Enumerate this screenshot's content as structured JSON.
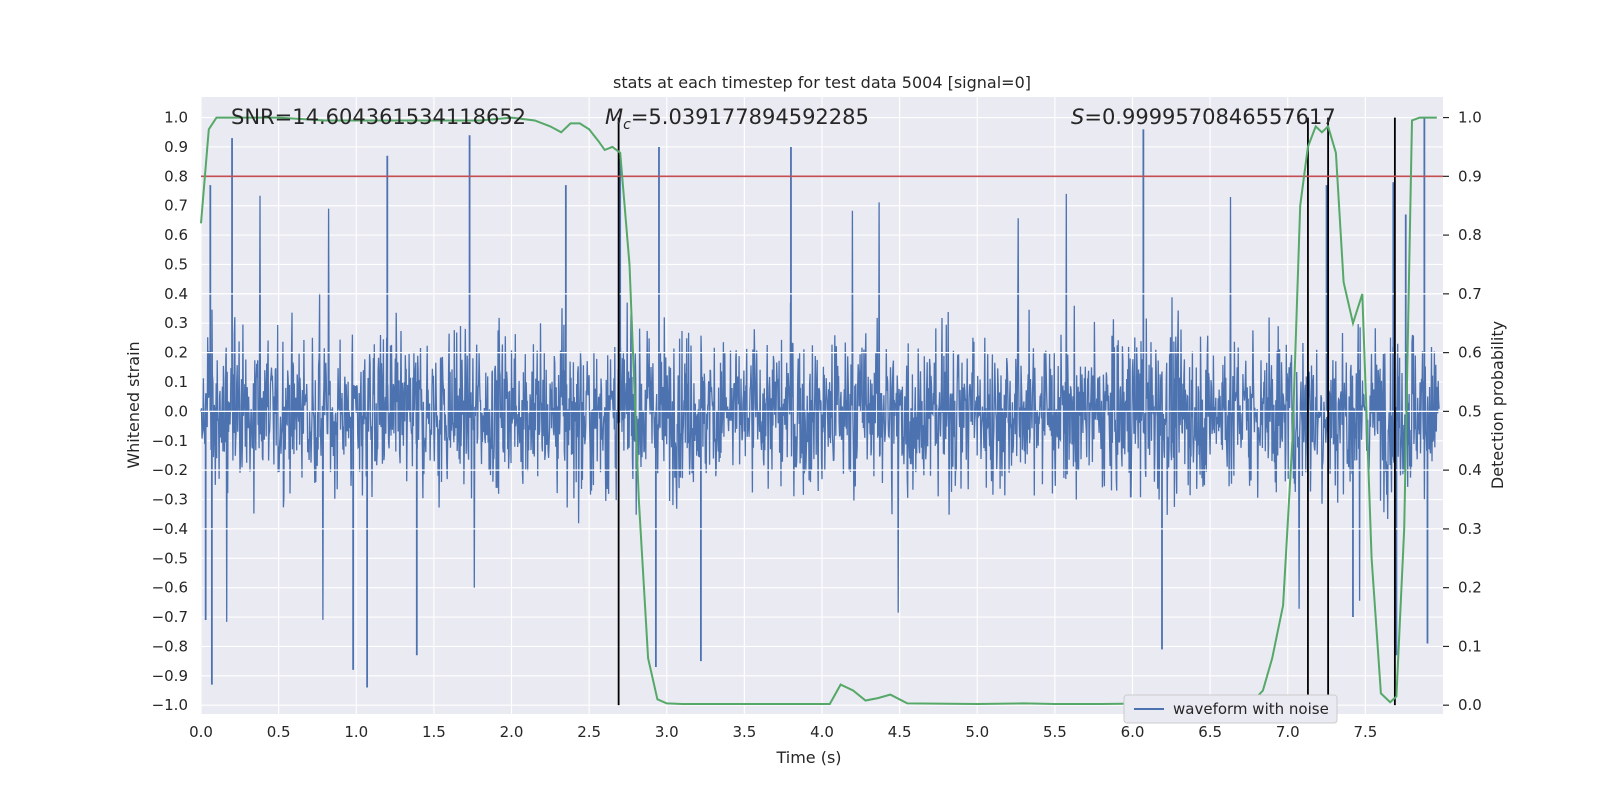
{
  "chart_data": {
    "type": "line",
    "title": "stats at each timestep for test data 5004 [signal=0]",
    "xlabel": "Time (s)",
    "ylabel": "Whitened strain",
    "y2label": "Detection probability",
    "xlim": [
      0.0,
      8.0
    ],
    "ylim": [
      -1.03,
      1.07
    ],
    "y2lim": [
      -0.015,
      1.035
    ],
    "x_ticks": [
      0.0,
      0.5,
      1.0,
      1.5,
      2.0,
      2.5,
      3.0,
      3.5,
      4.0,
      4.5,
      5.0,
      5.5,
      6.0,
      6.5,
      7.0,
      7.5
    ],
    "x_tick_labels": [
      "0.0",
      "0.5",
      "1.0",
      "1.5",
      "2.0",
      "2.5",
      "3.0",
      "3.5",
      "4.0",
      "4.5",
      "5.0",
      "5.5",
      "6.0",
      "6.5",
      "7.0",
      "7.5"
    ],
    "y_ticks": [
      1.0,
      0.9,
      0.8,
      0.7,
      0.6,
      0.5,
      0.4,
      0.3,
      0.2,
      0.1,
      0.0,
      -0.1,
      -0.2,
      -0.3,
      -0.4,
      -0.5,
      -0.6,
      -0.7,
      -0.8,
      -0.9,
      -1.0
    ],
    "y_tick_labels": [
      "1.0",
      "0.9",
      "0.8",
      "0.7",
      "0.6",
      "0.5",
      "0.4",
      "0.3",
      "0.2",
      "0.1",
      "0.0",
      "−0.1",
      "−0.2",
      "−0.3",
      "−0.4",
      "−0.5",
      "−0.6",
      "−0.7",
      "−0.8",
      "−0.9",
      "−1.0"
    ],
    "y2_ticks": [
      1.0,
      0.9,
      0.8,
      0.7,
      0.6,
      0.5,
      0.4,
      0.3,
      0.2,
      0.1,
      0.0
    ],
    "y2_tick_labels": [
      "1.0",
      "0.9",
      "0.8",
      "0.7",
      "0.6",
      "0.5",
      "0.4",
      "0.3",
      "0.2",
      "0.1",
      "0.0"
    ],
    "annotations": {
      "snr": "SNR=14.604361534118652",
      "mc_symbol": "M",
      "mc_sub": "c",
      "mc_value": "=5.039177894592285",
      "s_symbol": "S",
      "s_value": "=0.9999570846557617"
    },
    "threshold": {
      "value": 0.9,
      "axis": "y2",
      "color": "#c44e52"
    },
    "vertical_markers_x": [
      2.69,
      7.13,
      7.26,
      7.69
    ],
    "waveform": {
      "name": "waveform with noise",
      "color": "#4c72b0",
      "envelope": "dense noisy strain oscillating roughly between -0.55 and 0.5, with spikes reaching about 0.93 and -0.94"
    },
    "probability_series": {
      "name": "detection probability",
      "color": "#55a868",
      "x": [
        0.0,
        0.05,
        0.1,
        0.15,
        0.2,
        0.3,
        0.5,
        0.8,
        1.0,
        1.2,
        1.4,
        1.6,
        1.8,
        2.0,
        2.15,
        2.25,
        2.32,
        2.38,
        2.44,
        2.5,
        2.56,
        2.6,
        2.65,
        2.7,
        2.76,
        2.82,
        2.88,
        2.94,
        3.0,
        3.1,
        3.3,
        3.6,
        3.9,
        4.05,
        4.12,
        4.2,
        4.28,
        4.36,
        4.44,
        4.55,
        5.0,
        5.3,
        5.5,
        5.8,
        6.1,
        6.3,
        6.5,
        6.6,
        6.65,
        6.72,
        6.78,
        6.84,
        6.9,
        6.97,
        7.03,
        7.08,
        7.13,
        7.18,
        7.22,
        7.26,
        7.31,
        7.36,
        7.42,
        7.48,
        7.54,
        7.6,
        7.66,
        7.7,
        7.75,
        7.8,
        7.85,
        7.9,
        7.96
      ],
      "values": [
        0.82,
        0.98,
        1.0,
        1.0,
        1.0,
        1.0,
        1.0,
        0.995,
        0.995,
        0.995,
        0.995,
        0.995,
        0.995,
        1.0,
        0.995,
        0.985,
        0.975,
        0.99,
        0.99,
        0.98,
        0.96,
        0.945,
        0.95,
        0.94,
        0.75,
        0.35,
        0.08,
        0.01,
        0.003,
        0.002,
        0.002,
        0.002,
        0.002,
        0.002,
        0.035,
        0.025,
        0.008,
        0.012,
        0.018,
        0.003,
        0.002,
        0.003,
        0.002,
        0.002,
        0.003,
        0.004,
        0.008,
        0.01,
        0.008,
        0.004,
        0.008,
        0.025,
        0.08,
        0.17,
        0.45,
        0.85,
        0.95,
        0.985,
        0.975,
        0.985,
        0.94,
        0.72,
        0.65,
        0.7,
        0.25,
        0.02,
        0.005,
        0.015,
        0.3,
        0.995,
        1.0,
        1.0,
        1.0
      ]
    },
    "legend": {
      "label": "waveform with noise",
      "location": "lower-right"
    }
  }
}
